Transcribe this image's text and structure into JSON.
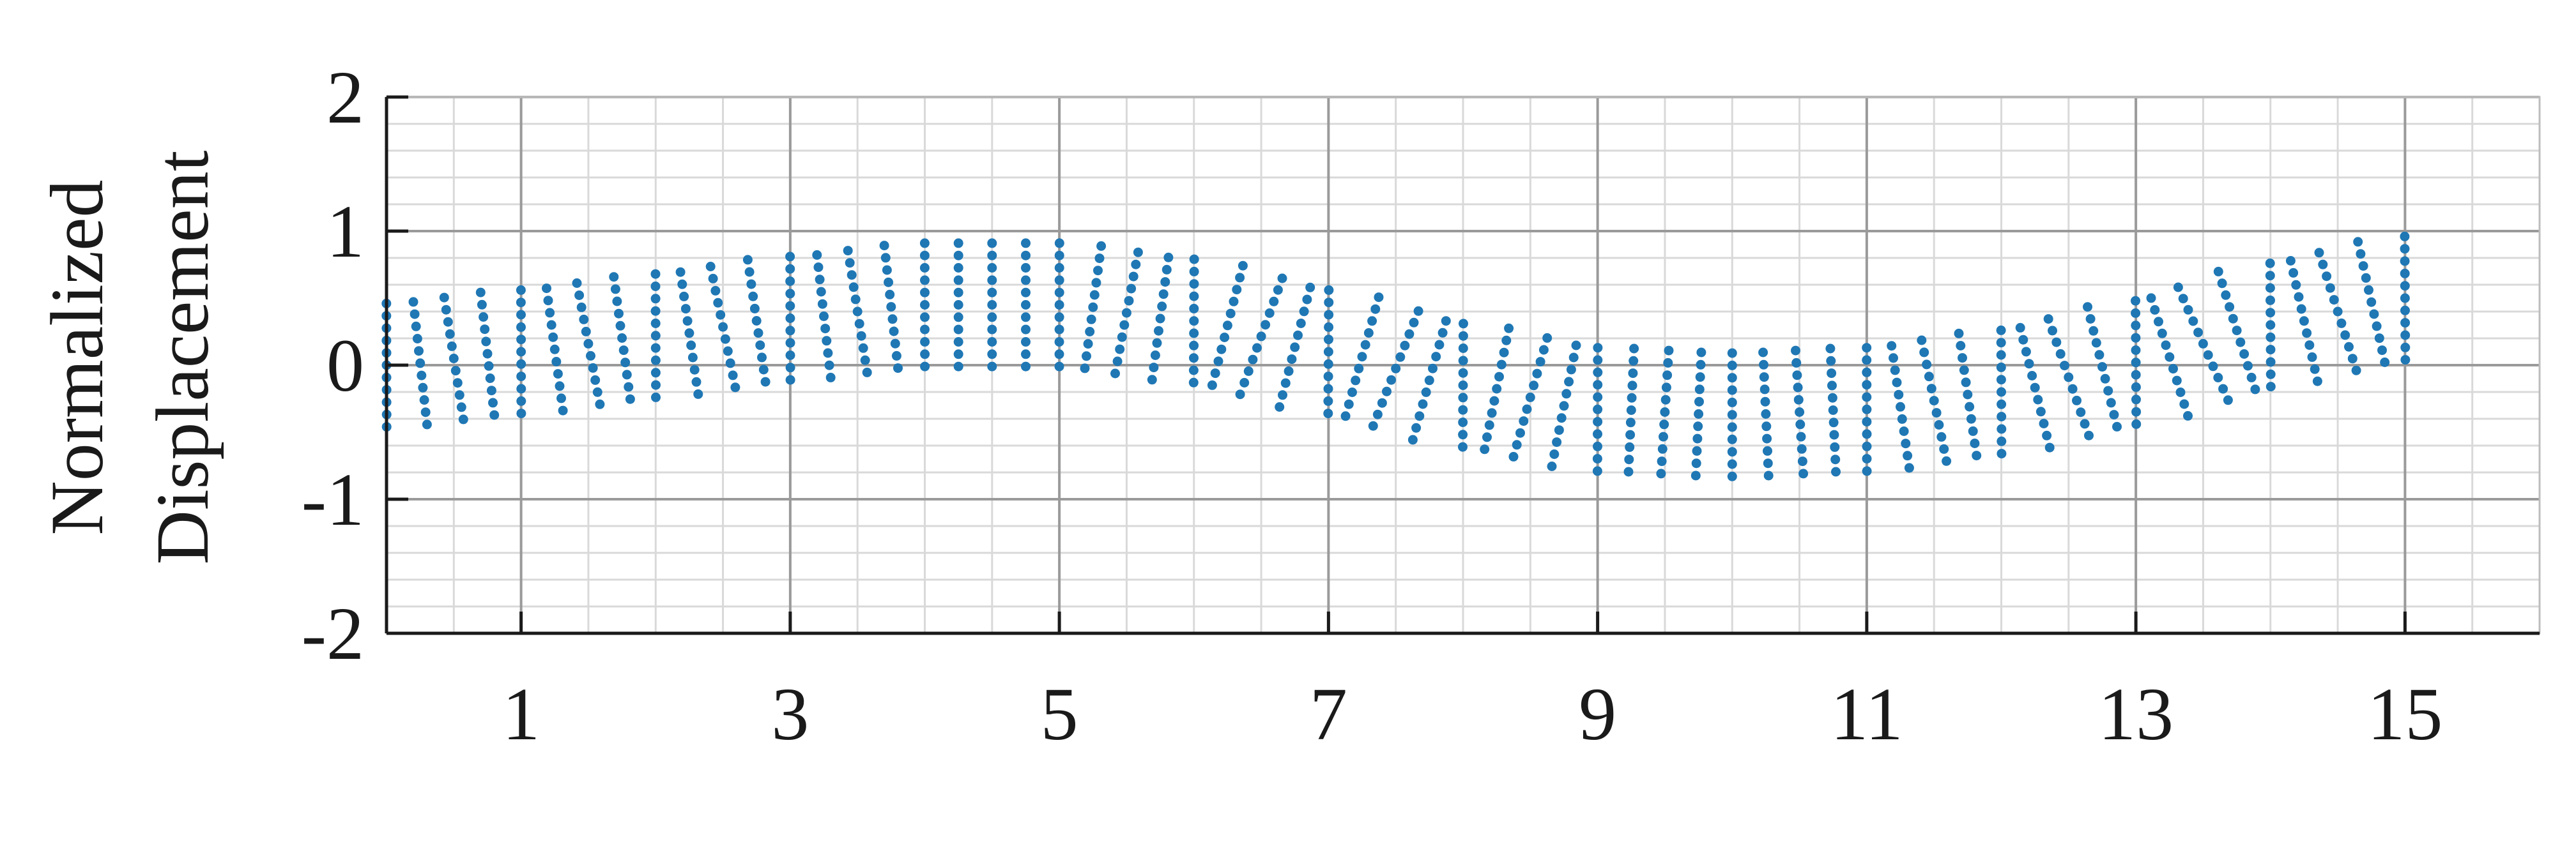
{
  "chart_data": {
    "type": "scatter",
    "title": "",
    "xlabel": "",
    "ylabel": [
      "Normalized",
      "Displacement"
    ],
    "xlim": [
      0,
      16
    ],
    "ylim": [
      -2,
      2
    ],
    "x_ticks": [
      1,
      3,
      5,
      7,
      9,
      11,
      13,
      15
    ],
    "y_ticks": [
      2,
      1,
      0,
      -1,
      -2
    ],
    "x_tick_labels": [
      "1",
      "3",
      "5",
      "7",
      "9",
      "11",
      "13",
      "15"
    ],
    "y_tick_labels": [
      "2",
      "1",
      "0",
      "-1",
      "-2"
    ],
    "grid": "major and minor",
    "legend": "none",
    "marker_color": "#1f77b4",
    "series": [
      {
        "shape": "deformed beam grid of points",
        "rows": 11,
        "columns": 61,
        "beam_length": 15,
        "beam_thickness": 0.92,
        "centerline_x": [
          0,
          1,
          2,
          3,
          4,
          5,
          6,
          7,
          8,
          9,
          10,
          11,
          12,
          13,
          14,
          15
        ],
        "centerline_y": [
          0,
          0.1,
          0.22,
          0.35,
          0.45,
          0.45,
          0.33,
          0.1,
          -0.15,
          -0.33,
          -0.37,
          -0.33,
          -0.2,
          0.02,
          0.3,
          0.5
        ]
      }
    ]
  }
}
